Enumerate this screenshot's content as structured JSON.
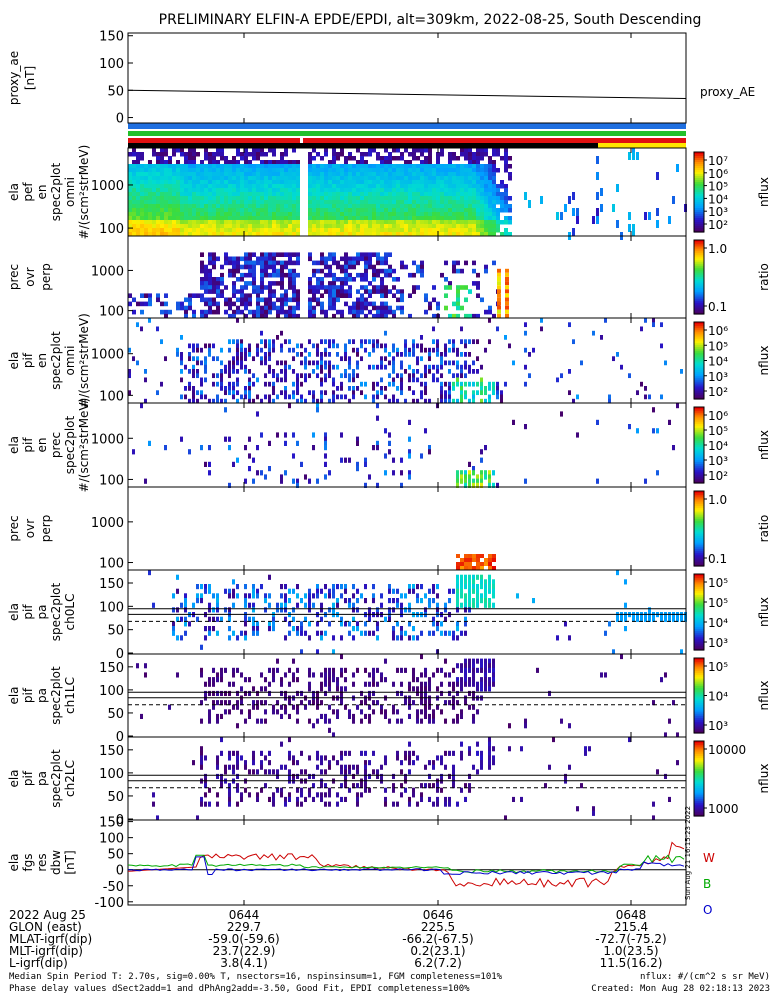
{
  "title": "PRELIMINARY ELFIN-A EPDE/EPDI, alt=309km, 2022-08-25, South Descending",
  "colors": {
    "bar_blue": "#1f6fe0",
    "bar_green": "#22c02a",
    "bar_red": "#e01010",
    "bar_black": "#000000",
    "bar_yellow": "#ffe600",
    "fgs_W": "#cc0000",
    "fgs_B": "#00aa00",
    "fgs_O": "#0000cc"
  },
  "side_note": "Sun Aug 21 16:15:23 2022",
  "time_axis": {
    "tick_labels": [
      "0644",
      "0646",
      "0648"
    ],
    "rows": [
      {
        "label": "2022 Aug 25",
        "values": [
          "",
          "",
          ""
        ]
      },
      {
        "label": "GLON (east)",
        "values": [
          "229.7",
          "225.5",
          "215.4"
        ]
      },
      {
        "label": "MLAT-igrf(dip)",
        "values": [
          "-59.0(-59.6)",
          "-66.2(-67.5)",
          "-72.7(-75.2)"
        ]
      },
      {
        "label": "MLT-igrf(dip)",
        "values": [
          "23.7(22.9)",
          "0.2(23.1)",
          "1.0(23.5)"
        ]
      },
      {
        "label": "L-igrf(dip)",
        "values": [
          "3.8(4.1)",
          "6.2(7.2)",
          "11.5(16.2)"
        ]
      }
    ]
  },
  "footer": {
    "line1_left": "Median Spin Period T: 2.70s, sig=0.00% T, nsectors=16, nspinsinsum=1, FGM completeness=101%",
    "line2_left": "Phase delay values dSect2add=1 and dPhAng2add=-3.50, Good Fit, EPDI completeness=100%",
    "line1_right": "nflux: #/(cm^2 s sr MeV)",
    "line2_right": "Created: Mon Aug 28 02:18:13 2023"
  },
  "chart_data": [
    {
      "type": "line",
      "panel": "proxy_ae",
      "ylabel_lines": [
        "proxy_ae",
        "[nT]"
      ],
      "ylim": [
        -10,
        155
      ],
      "yticks": [
        "150",
        "100",
        "50",
        "0"
      ],
      "series": [
        {
          "name": "proxy_AE",
          "x": [
            "0642:55",
            "0649:20"
          ],
          "y": [
            50,
            35
          ]
        }
      ],
      "legend_text": "proxy_AE"
    },
    {
      "type": "heatmap",
      "panel": "ela_pef_en_omni",
      "ylabel_lines": [
        "ela",
        "pef",
        "en",
        "spec2plot",
        "omni",
        "#/(scm²strMeV)"
      ],
      "yticks": [
        "1000",
        "100"
      ],
      "colorbar": {
        "label": "nflux",
        "ticks": [
          "10⁷",
          "10⁶",
          "10⁵",
          "10⁴",
          "10³",
          "10²"
        ]
      }
    },
    {
      "type": "heatmap",
      "panel": "prec_ovr_perp_e",
      "ylabel_lines": [
        "prec",
        "ovr",
        "perp"
      ],
      "yticks": [
        "1000",
        "100"
      ],
      "colorbar": {
        "label": "ratio",
        "ticks": [
          "1.0",
          "0.1"
        ]
      }
    },
    {
      "type": "heatmap",
      "panel": "ela_pif_en_omni",
      "ylabel_lines": [
        "ela",
        "pif",
        "en",
        "spec2plot",
        "omni",
        "#/(scm²strMeV)"
      ],
      "yticks": [
        "1000",
        "100"
      ],
      "colorbar": {
        "label": "nflux",
        "ticks": [
          "10⁶",
          "10⁵",
          "10⁴",
          "10³",
          "10²"
        ]
      }
    },
    {
      "type": "heatmap",
      "panel": "ela_pif_en_prec",
      "ylabel_lines": [
        "ela",
        "pif",
        "en",
        "prec",
        "spec2plot",
        "#/(scm²strMeV)"
      ],
      "yticks": [
        "1000",
        "100"
      ],
      "colorbar": {
        "label": "nflux",
        "ticks": [
          "10⁶",
          "10⁵",
          "10⁴",
          "10³",
          "10²"
        ]
      }
    },
    {
      "type": "heatmap",
      "panel": "prec_ovr_perp_i",
      "ylabel_lines": [
        "prec",
        "ovr",
        "perp"
      ],
      "yticks": [
        "1000",
        "100"
      ],
      "colorbar": {
        "label": "ratio",
        "ticks": [
          "1.0",
          "0.1"
        ]
      }
    },
    {
      "type": "heatmap",
      "panel": "ela_pif_pa_ch0",
      "ylabel_lines": [
        "ela",
        "pif",
        "pa",
        "spec2plot",
        "ch0LC"
      ],
      "yticks": [
        "150",
        "100",
        "50",
        "0"
      ],
      "colorbar": {
        "label": "nflux",
        "ticks": [
          "10⁵",
          "10⁵",
          "10⁴",
          "10³"
        ]
      }
    },
    {
      "type": "heatmap",
      "panel": "ela_pif_pa_ch1",
      "ylabel_lines": [
        "ela",
        "pif",
        "pa",
        "spec2plot",
        "ch1LC"
      ],
      "yticks": [
        "150",
        "100",
        "50",
        "0"
      ],
      "colorbar": {
        "label": "nflux",
        "ticks": [
          "10⁵",
          "10⁴",
          "10³"
        ]
      }
    },
    {
      "type": "heatmap",
      "panel": "ela_pif_pa_ch2",
      "ylabel_lines": [
        "ela",
        "pif",
        "pa",
        "spec2plot",
        "ch2LC"
      ],
      "yticks": [
        "150",
        "100",
        "50",
        "0"
      ],
      "colorbar": {
        "label": "nflux",
        "ticks": [
          "10000",
          "1000"
        ]
      }
    },
    {
      "type": "line",
      "panel": "ela_fgs_res_dbw",
      "ylabel_lines": [
        "ela",
        "fgs",
        "res",
        "dbw",
        "[nT]"
      ],
      "ylim": [
        -110,
        155
      ],
      "yticks": [
        "150",
        "100",
        "50",
        "0",
        "-50",
        "-100"
      ],
      "legend": [
        "W",
        "B",
        "O"
      ]
    }
  ]
}
